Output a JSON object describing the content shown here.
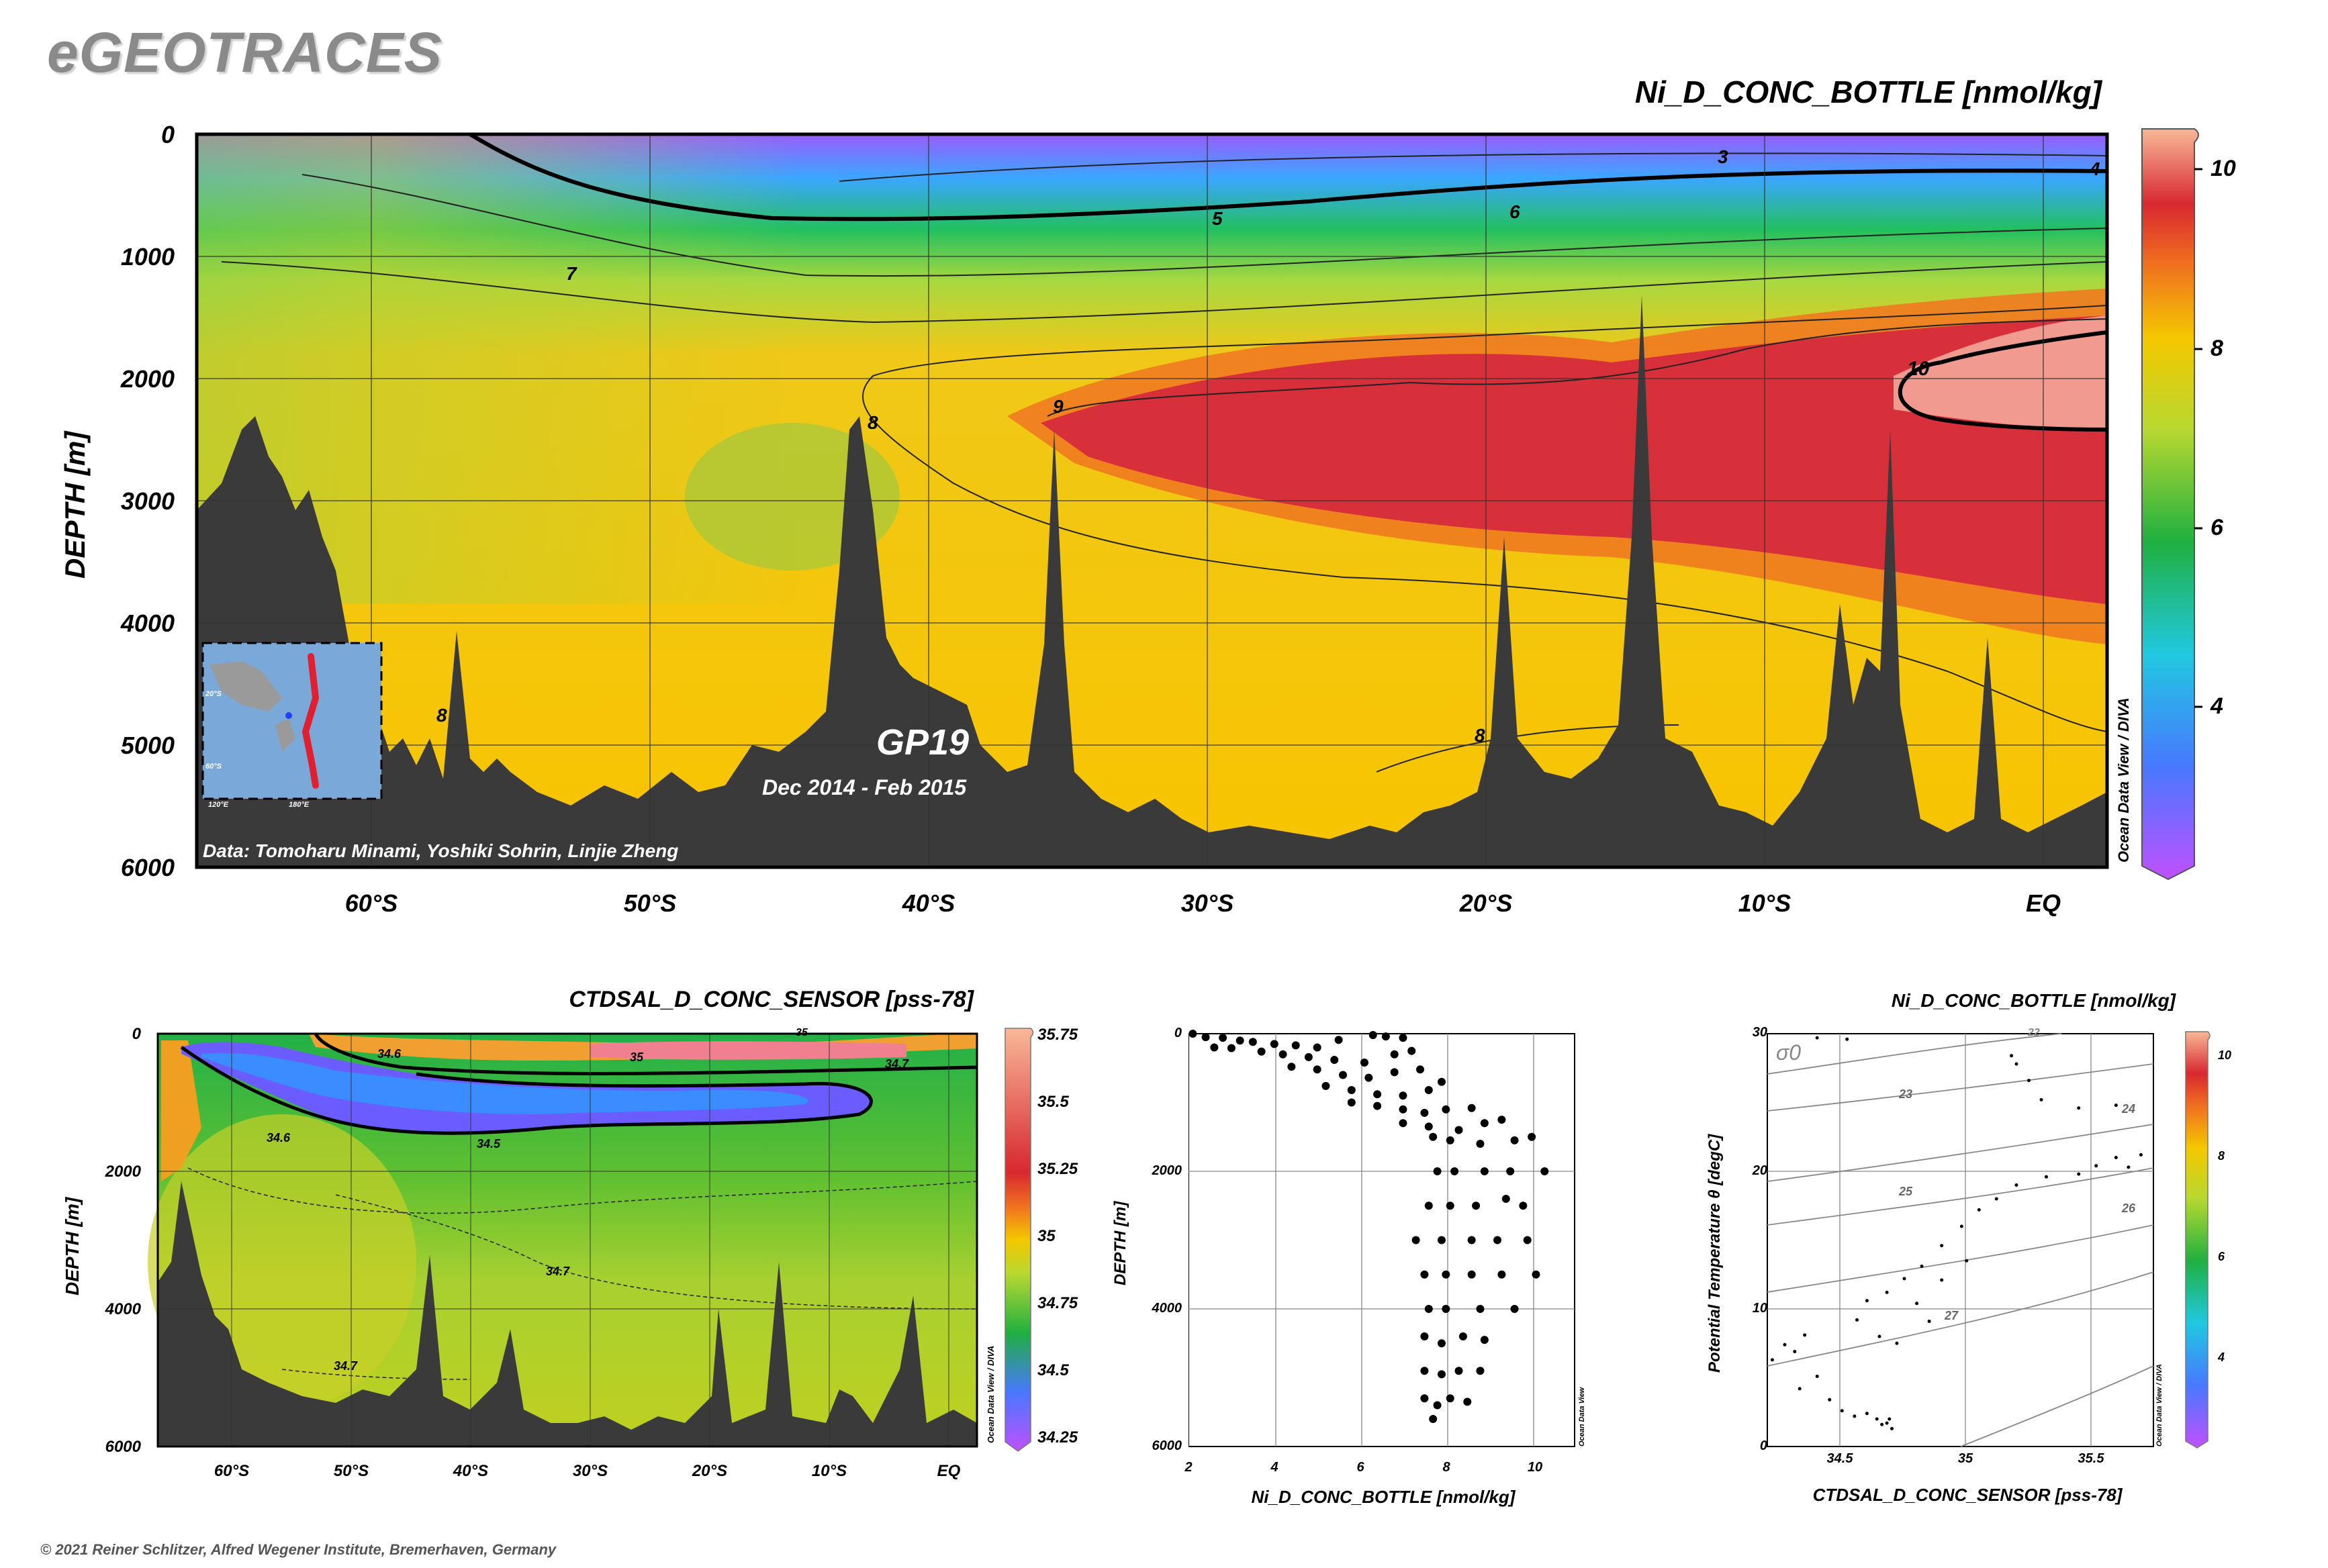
{
  "brand": "eGEOTRACES",
  "footer": "© 2021 Reiner Schlitzer, Alfred Wegener Institute, Bremerhaven, Germany",
  "colors": {
    "land": "#3a3a3a",
    "frame": "#000000",
    "grid": "#555555"
  },
  "main": {
    "title": "Ni_D_CONC_BOTTLE [nmol/kg]",
    "ylabel": "DEPTH [m]",
    "y_ticks": [
      "0",
      "1000",
      "2000",
      "3000",
      "4000",
      "5000",
      "6000"
    ],
    "x_ticks": [
      "60°S",
      "50°S",
      "40°S",
      "30°S",
      "20°S",
      "10°S",
      "EQ"
    ],
    "cruise": "GP19",
    "dates": "Dec 2014 - Feb 2015",
    "credit": "Data: Tomoharu Minami, Yoshiki Sohrin, Linjie Zheng",
    "odv": "Ocean Data View / DIVA",
    "colorbar_ticks": [
      "10",
      "8",
      "6",
      "4"
    ],
    "contour_labels": [
      "3",
      "4",
      "5",
      "6",
      "7",
      "8",
      "8",
      "8",
      "9",
      "10"
    ],
    "inset_labels": [
      "20°S",
      "60°S",
      "120°E",
      "180°E"
    ]
  },
  "salinity": {
    "title": "CTDSAL_D_CONC_SENSOR [pss-78]",
    "ylabel": "DEPTH [m]",
    "y_ticks": [
      "0",
      "2000",
      "4000",
      "6000"
    ],
    "x_ticks": [
      "60°S",
      "50°S",
      "40°S",
      "30°S",
      "20°S",
      "10°S",
      "EQ"
    ],
    "odv": "Ocean Data View / DIVA",
    "colorbar_ticks": [
      "35.75",
      "35.5",
      "35.25",
      "35",
      "34.75",
      "34.5",
      "34.25"
    ],
    "contour_labels": [
      "34.6",
      "35",
      "34.7",
      "34.6",
      "34.5",
      "34.7",
      "34.7",
      "35"
    ]
  },
  "scatter": {
    "xlabel": "Ni_D_CONC_BOTTLE [nmol/kg]",
    "ylabel": "DEPTH [m]",
    "x_ticks": [
      "2",
      "4",
      "6",
      "8",
      "10"
    ],
    "y_ticks": [
      "0",
      "2000",
      "4000",
      "6000"
    ],
    "odv": "Ocean Data View"
  },
  "ts": {
    "title": "Ni_D_CONC_BOTTLE [nmol/kg]",
    "xlabel": "CTDSAL_D_CONC_SENSOR [pss-78]",
    "ylabel": "Potential Temperature θ [degC]",
    "sigma": "σ0",
    "x_ticks": [
      "34.5",
      "35",
      "35.5"
    ],
    "y_ticks": [
      "30",
      "20",
      "10",
      "0"
    ],
    "isopycnals": [
      "22",
      "23",
      "24",
      "25",
      "26",
      "27"
    ],
    "colorbar_ticks": [
      "10",
      "8",
      "6",
      "4"
    ],
    "odv": "Ocean Data View / DIVA"
  },
  "chart_data": [
    {
      "type": "heatmap",
      "title": "Ni_D_CONC_BOTTLE [nmol/kg]",
      "xlabel": "",
      "ylabel": "DEPTH [m]",
      "x_categories": [
        "60°S",
        "50°S",
        "40°S",
        "30°S",
        "20°S",
        "10°S",
        "EQ"
      ],
      "ylim": [
        6000,
        0
      ],
      "colorbar": [
        2,
        10.4
      ],
      "contours": [
        3,
        4,
        5,
        6,
        7,
        8,
        9,
        10
      ]
    },
    {
      "type": "heatmap",
      "title": "CTDSAL_D_CONC_SENSOR [pss-78]",
      "ylabel": "DEPTH [m]",
      "x_categories": [
        "60°S",
        "50°S",
        "40°S",
        "30°S",
        "20°S",
        "10°S",
        "EQ"
      ],
      "ylim": [
        6000,
        0
      ],
      "colorbar": [
        34.2,
        35.8
      ],
      "contours": [
        34.5,
        34.6,
        34.7,
        35
      ]
    },
    {
      "type": "scatter",
      "xlabel": "Ni_D_CONC_BOTTLE [nmol/kg]",
      "ylabel": "DEPTH [m]",
      "xlim": [
        2,
        11
      ],
      "ylim": [
        6000,
        0
      ],
      "points": [
        [
          2.1,
          0
        ],
        [
          2.4,
          50
        ],
        [
          2.8,
          60
        ],
        [
          3.2,
          100
        ],
        [
          3.5,
          120
        ],
        [
          4.0,
          150
        ],
        [
          4.5,
          170
        ],
        [
          5.0,
          200
        ],
        [
          5.5,
          90
        ],
        [
          6.3,
          20
        ],
        [
          6.6,
          40
        ],
        [
          7.0,
          60
        ],
        [
          2.6,
          200
        ],
        [
          3.0,
          210
        ],
        [
          3.7,
          260
        ],
        [
          4.2,
          300
        ],
        [
          4.8,
          340
        ],
        [
          5.4,
          380
        ],
        [
          6.1,
          420
        ],
        [
          6.8,
          300
        ],
        [
          7.2,
          250
        ],
        [
          4.4,
          480
        ],
        [
          5.0,
          520
        ],
        [
          5.6,
          600
        ],
        [
          6.2,
          640
        ],
        [
          6.8,
          560
        ],
        [
          7.4,
          520
        ],
        [
          5.2,
          760
        ],
        [
          5.8,
          820
        ],
        [
          6.4,
          880
        ],
        [
          7.0,
          900
        ],
        [
          7.6,
          820
        ],
        [
          7.9,
          700
        ],
        [
          5.8,
          1000
        ],
        [
          6.4,
          1050
        ],
        [
          7.0,
          1100
        ],
        [
          7.5,
          1150
        ],
        [
          8.0,
          1100
        ],
        [
          8.6,
          1080
        ],
        [
          7.0,
          1300
        ],
        [
          7.6,
          1350
        ],
        [
          8.3,
          1400
        ],
        [
          8.9,
          1300
        ],
        [
          9.3,
          1250
        ],
        [
          7.7,
          1500
        ],
        [
          8.1,
          1550
        ],
        [
          8.8,
          1600
        ],
        [
          9.6,
          1550
        ],
        [
          10.0,
          1500
        ],
        [
          7.8,
          2000
        ],
        [
          8.2,
          2000
        ],
        [
          8.9,
          2000
        ],
        [
          9.5,
          2000
        ],
        [
          10.3,
          2000
        ],
        [
          7.6,
          2500
        ],
        [
          8.1,
          2500
        ],
        [
          8.7,
          2500
        ],
        [
          9.4,
          2400
        ],
        [
          9.8,
          2500
        ],
        [
          7.3,
          3000
        ],
        [
          7.9,
          3000
        ],
        [
          8.6,
          3000
        ],
        [
          9.2,
          3000
        ],
        [
          9.9,
          3000
        ],
        [
          7.5,
          3500
        ],
        [
          8.0,
          3500
        ],
        [
          8.6,
          3500
        ],
        [
          9.3,
          3500
        ],
        [
          10.1,
          3500
        ],
        [
          7.6,
          4000
        ],
        [
          8.0,
          4000
        ],
        [
          8.8,
          4000
        ],
        [
          9.6,
          4000
        ],
        [
          7.5,
          4400
        ],
        [
          7.9,
          4500
        ],
        [
          8.4,
          4400
        ],
        [
          8.9,
          4450
        ],
        [
          7.5,
          4900
        ],
        [
          7.9,
          4950
        ],
        [
          8.3,
          4900
        ],
        [
          8.8,
          4900
        ],
        [
          7.5,
          5300
        ],
        [
          7.8,
          5400
        ],
        [
          8.1,
          5300
        ],
        [
          8.5,
          5350
        ],
        [
          7.7,
          5600
        ]
      ]
    },
    {
      "type": "scatter",
      "xlabel": "CTDSAL_D_CONC_SENSOR [pss-78]",
      "ylabel": "Potential Temperature θ [degC]",
      "xlim": [
        34.2,
        35.75
      ],
      "ylim": [
        0,
        30
      ],
      "points": [
        [
          34.22,
          6.3
        ],
        [
          34.27,
          7.4
        ],
        [
          34.31,
          6.9
        ],
        [
          34.35,
          8.1
        ],
        [
          34.33,
          4.2
        ],
        [
          34.4,
          5.1
        ],
        [
          34.45,
          3.4
        ],
        [
          34.5,
          2.6
        ],
        [
          34.55,
          2.2
        ],
        [
          34.6,
          2.4
        ],
        [
          34.64,
          2.0
        ],
        [
          34.68,
          1.7
        ],
        [
          34.7,
          1.3
        ],
        [
          34.69,
          2.0
        ],
        [
          34.66,
          1.6
        ],
        [
          34.56,
          9.2
        ],
        [
          34.6,
          10.6
        ],
        [
          34.68,
          11.2
        ],
        [
          34.75,
          12.2
        ],
        [
          34.82,
          13.1
        ],
        [
          34.9,
          14.6
        ],
        [
          34.98,
          16.0
        ],
        [
          35.05,
          17.2
        ],
        [
          35.12,
          18.0
        ],
        [
          35.2,
          19.0
        ],
        [
          35.32,
          19.6
        ],
        [
          35.45,
          19.8
        ],
        [
          35.52,
          20.4
        ],
        [
          35.6,
          21.0
        ],
        [
          35.65,
          20.3
        ],
        [
          35.7,
          21.2
        ],
        [
          35.6,
          24.8
        ],
        [
          35.45,
          24.6
        ],
        [
          35.3,
          25.2
        ],
        [
          35.25,
          26.6
        ],
        [
          35.2,
          27.8
        ],
        [
          35.18,
          28.4
        ],
        [
          34.9,
          12.1
        ],
        [
          35.0,
          13.5
        ],
        [
          34.8,
          10.4
        ],
        [
          34.85,
          9.1
        ],
        [
          34.65,
          8.0
        ],
        [
          34.72,
          7.5
        ],
        [
          34.4,
          29.7
        ],
        [
          34.52,
          29.6
        ]
      ]
    }
  ]
}
